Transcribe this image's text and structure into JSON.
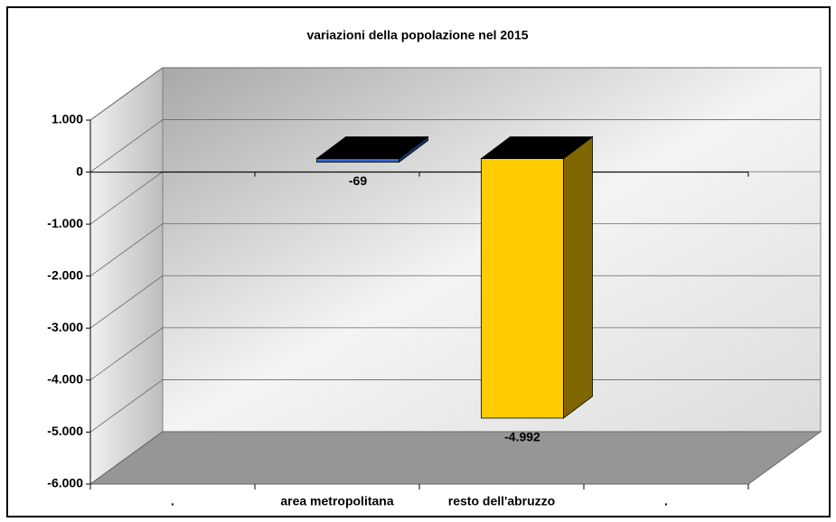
{
  "chart_data": {
    "type": "bar",
    "title": "variazioni della popolazione nel 2015",
    "categories": [
      ".",
      "area metropolitana",
      "resto dell'abruzzo",
      "."
    ],
    "values": [
      null,
      -69,
      -4992,
      null
    ],
    "value_labels": [
      null,
      "-69",
      "-4.992",
      null
    ],
    "colors": [
      null,
      "#3366cc",
      "#ffcc00",
      null
    ],
    "ylim": [
      -6000,
      1000
    ],
    "yticks": [
      {
        "value": -6000,
        "label": "-6.000"
      },
      {
        "value": -5000,
        "label": "-5.000"
      },
      {
        "value": -4000,
        "label": "-4.000"
      },
      {
        "value": -3000,
        "label": "-3.000"
      },
      {
        "value": -2000,
        "label": "-2.000"
      },
      {
        "value": -1000,
        "label": "-1.000"
      },
      0,
      {
        "value": 1000,
        "label": "1.000"
      }
    ],
    "grid": true
  }
}
